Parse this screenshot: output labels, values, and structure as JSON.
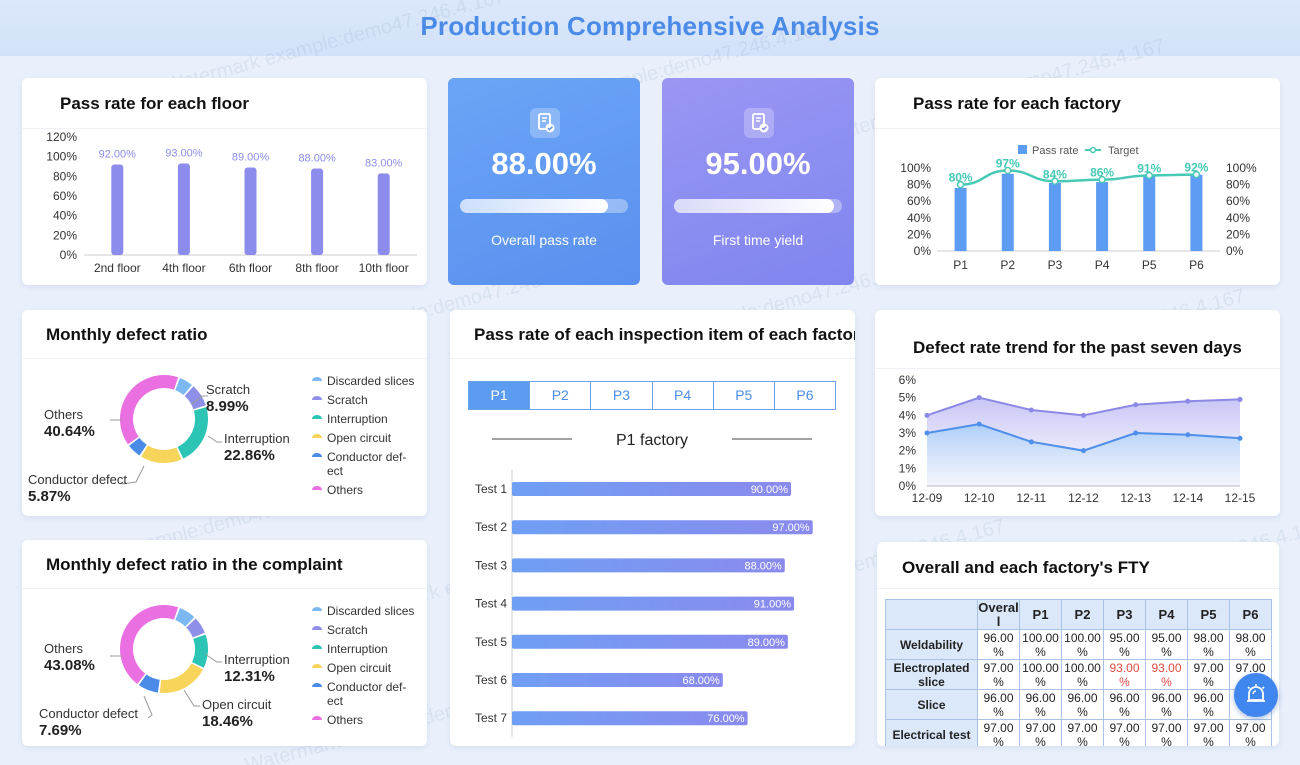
{
  "page_title": "Production Comprehensive Analysis",
  "watermark": "Watermark example:demo47.246.4.167",
  "floor_pass": {
    "title": "Pass rate for each floor",
    "y_ticks": [
      "120%",
      "100%",
      "80%",
      "60%",
      "40%",
      "20%",
      "0%"
    ],
    "items": [
      {
        "label": "2nd floor",
        "value": 92.0,
        "text": "92.00%"
      },
      {
        "label": "4th floor",
        "value": 93.0,
        "text": "93.00%"
      },
      {
        "label": "6th floor",
        "value": 89.0,
        "text": "89.00%"
      },
      {
        "label": "8th floor",
        "value": 88.0,
        "text": "88.00%"
      },
      {
        "label": "10th floor",
        "value": 83.0,
        "text": "83.00%"
      }
    ]
  },
  "kpi_overall": {
    "value": "88.00%",
    "label": "Overall pass rate",
    "progress": 0.88
  },
  "kpi_first": {
    "value": "95.00%",
    "label": "First time yield",
    "progress": 0.95
  },
  "factory_pass": {
    "title": "Pass rate for each factory",
    "legend_bar": "Pass rate",
    "legend_line": "Target",
    "y_ticks": [
      "100%",
      "80%",
      "60%",
      "40%",
      "20%",
      "0%"
    ],
    "items": [
      {
        "label": "P1",
        "pass": 76,
        "target": 80,
        "target_text": "80%"
      },
      {
        "label": "P2",
        "pass": 93,
        "target": 97,
        "target_text": "97%"
      },
      {
        "label": "P3",
        "pass": 82,
        "target": 84,
        "target_text": "84%"
      },
      {
        "label": "P4",
        "pass": 83,
        "target": 86,
        "target_text": "86%"
      },
      {
        "label": "P5",
        "pass": 90,
        "target": 91,
        "target_text": "91%"
      },
      {
        "label": "P6",
        "pass": 92,
        "target": 92,
        "target_text": "92%"
      }
    ]
  },
  "monthly_defect": {
    "title": "Monthly defect ratio",
    "slices": [
      {
        "name": "Discarded slices",
        "value": 5.72,
        "color": "#7cb8f2"
      },
      {
        "name": "Scratch",
        "value": 8.99,
        "color": "#8d8fe8"
      },
      {
        "name": "Interruption",
        "value": 22.86,
        "color": "#2cc4b4"
      },
      {
        "name": "Open circuit",
        "value": 15.92,
        "color": "#f7d45a"
      },
      {
        "name": "Conductor defect",
        "value": 5.87,
        "color": "#4a8be8"
      },
      {
        "name": "Others",
        "value": 40.64,
        "color": "#ea6fe0"
      }
    ],
    "callouts": [
      {
        "name": "Scratch",
        "pct": "8.99%"
      },
      {
        "name": "Interruption",
        "pct": "22.86%"
      },
      {
        "name": "Conductor defect",
        "pct": "5.87%"
      },
      {
        "name": "Others",
        "pct": "40.64%"
      }
    ],
    "legend": [
      "Discarded slices",
      "Scratch",
      "Interruption",
      "Open circuit",
      "Conductor def-",
      "ect",
      "Others"
    ]
  },
  "complaint_defect": {
    "title": "Monthly defect ratio in the complaint",
    "slices": [
      {
        "name": "Discarded slices",
        "value": 6.5,
        "color": "#7cb8f2"
      },
      {
        "name": "Scratch",
        "value": 6.5,
        "color": "#8d8fe8"
      },
      {
        "name": "Interruption",
        "value": 12.31,
        "color": "#2cc4b4"
      },
      {
        "name": "Open circuit",
        "value": 18.46,
        "color": "#f7d45a"
      },
      {
        "name": "Conductor defect",
        "value": 7.69,
        "color": "#4a8be8"
      },
      {
        "name": "Others",
        "value": 43.08,
        "color": "#ea6fe0"
      }
    ],
    "callouts": [
      {
        "name": "Interruption",
        "pct": "12.31%"
      },
      {
        "name": "Open circuit",
        "pct": "18.46%"
      },
      {
        "name": "Conductor defect",
        "pct": "7.69%"
      },
      {
        "name": "Others",
        "pct": "43.08%"
      }
    ],
    "legend": [
      "Discarded slices",
      "Scratch",
      "Interruption",
      "Open circuit",
      "Conductor def-",
      "ect",
      "Others"
    ]
  },
  "inspection": {
    "title": "Pass rate of each inspection item of each factory",
    "tabs": [
      "P1",
      "P2",
      "P3",
      "P4",
      "P5",
      "P6"
    ],
    "active_tab": "P1",
    "subtitle": "P1 factory",
    "items": [
      {
        "label": "Test 1",
        "value": 90.0,
        "text": "90.00%"
      },
      {
        "label": "Test 2",
        "value": 97.0,
        "text": "97.00%"
      },
      {
        "label": "Test 3",
        "value": 88.0,
        "text": "88.00%"
      },
      {
        "label": "Test 4",
        "value": 91.0,
        "text": "91.00%"
      },
      {
        "label": "Test 5",
        "value": 89.0,
        "text": "89.00%"
      },
      {
        "label": "Test 6",
        "value": 68.0,
        "text": "68.00%"
      },
      {
        "label": "Test 7",
        "value": 76.0,
        "text": "76.00%"
      }
    ]
  },
  "defect_trend": {
    "title": "Defect rate trend for the past seven days",
    "y_ticks": [
      "6%",
      "5%",
      "4%",
      "3%",
      "2%",
      "1%",
      "0%"
    ],
    "x": [
      "12-09",
      "12-10",
      "12-11",
      "12-12",
      "12-13",
      "12-14",
      "12-15"
    ],
    "series_a": [
      4.0,
      5.0,
      4.3,
      4.0,
      4.6,
      4.8,
      4.9
    ],
    "series_b": [
      3.0,
      3.5,
      2.5,
      2.0,
      3.0,
      2.9,
      2.7
    ]
  },
  "fty": {
    "title": "Overall and each factory's FTY",
    "columns": [
      "Overal l",
      "P1",
      "P2",
      "P3",
      "P4",
      "P5",
      "P6"
    ],
    "rows": [
      {
        "label": "Weldability",
        "cells": [
          "96.00 %",
          "100.00 %",
          "100.00 %",
          "95.00 %",
          "95.00 %",
          "98.00 %",
          "98.00 %"
        ]
      },
      {
        "label": "Electroplated slice",
        "cells": [
          "97.00 %",
          "100.00 %",
          "100.00 %",
          "93.00 %",
          "93.00 %",
          "97.00 %",
          "97.00 %"
        ]
      },
      {
        "label": "Slice",
        "cells": [
          "96.00 %",
          "96.00 %",
          "96.00 %",
          "96.00 %",
          "96.00 %",
          "96.00 %",
          "96.00 %"
        ]
      },
      {
        "label": "Electrical test",
        "cells": [
          "97.00 %",
          "97.00 %",
          "97.00 %",
          "97.00 %",
          "97.00 %",
          "97.00 %",
          "97.00 %"
        ]
      }
    ]
  },
  "colors": {
    "accent": "#4a8be8",
    "bar": "#8b8cec",
    "factory_bar": "#5c9cf2",
    "target_line": "#46c9b5"
  }
}
